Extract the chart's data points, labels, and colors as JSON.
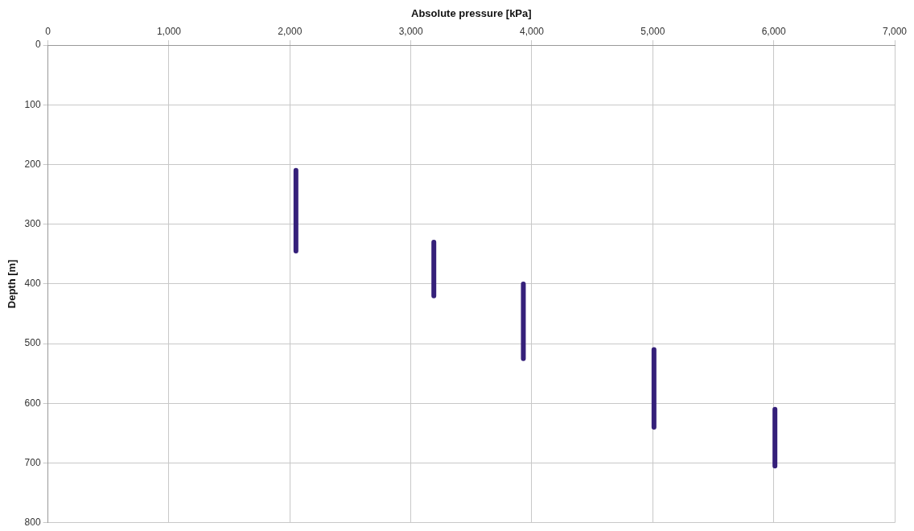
{
  "chart_data": {
    "type": "line",
    "xlabel": "Absolute pressure [kPa]",
    "ylabel": "Depth [m]",
    "xlim": [
      0,
      7000
    ],
    "xticks": [
      0,
      {
        "value": 1000,
        "label": "1,000"
      },
      {
        "value": 2000,
        "label": "2,000"
      },
      {
        "value": 3000,
        "label": "3,000"
      },
      {
        "value": 4000,
        "label": "4,000"
      },
      {
        "value": 5000,
        "label": "5,000"
      },
      {
        "value": 6000,
        "label": "6,000"
      },
      {
        "value": 7000,
        "label": "7,000"
      }
    ],
    "ylim": [
      800,
      0
    ],
    "yticks": [
      0,
      100,
      200,
      300,
      400,
      500,
      600,
      700,
      800
    ],
    "grid": true,
    "legend": false,
    "marker": "none",
    "line_style": "solid",
    "series": [
      {
        "color": "#35207a",
        "x": [
          2050,
          2050
        ],
        "values": [
          210,
          345
        ]
      },
      {
        "color": "#35207a",
        "x": [
          3190,
          3190
        ],
        "values": [
          330,
          420
        ]
      },
      {
        "color": "#35207a",
        "x": [
          3930,
          3930
        ],
        "values": [
          400,
          525
        ]
      },
      {
        "color": "#35207a",
        "x": [
          5010,
          5010
        ],
        "values": [
          510,
          640
        ]
      },
      {
        "color": "#35207a",
        "x": [
          6010,
          6010
        ],
        "values": [
          610,
          705
        ]
      }
    ]
  }
}
